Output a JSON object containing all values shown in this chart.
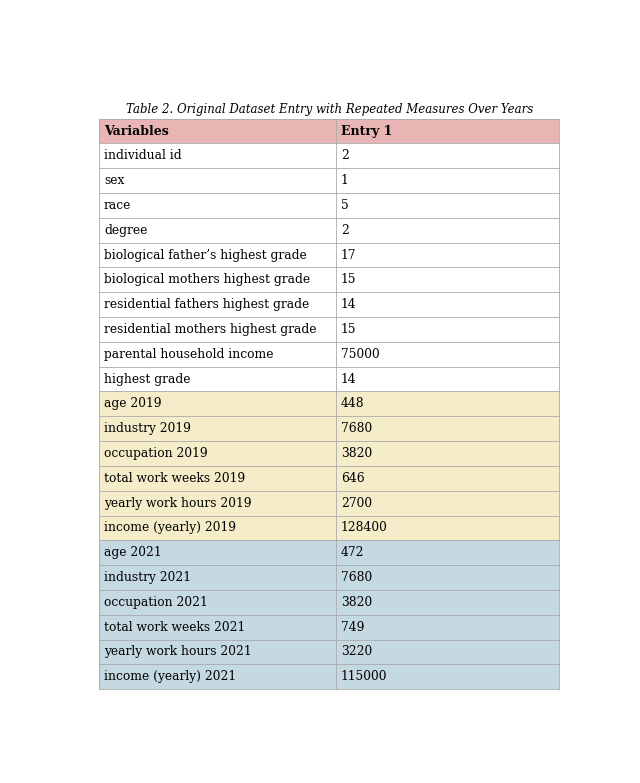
{
  "title": "Table 2. Original Dataset Entry with Repeated Measures Over Years",
  "col_headers": [
    "Variables",
    "Entry 1"
  ],
  "rows": [
    [
      "individual id",
      "2"
    ],
    [
      "sex",
      "1"
    ],
    [
      "race",
      "5"
    ],
    [
      "degree",
      "2"
    ],
    [
      "biological father’s highest grade",
      "17"
    ],
    [
      "biological mothers highest grade",
      "15"
    ],
    [
      "residential fathers highest grade",
      "14"
    ],
    [
      "residential mothers highest grade",
      "15"
    ],
    [
      "parental household income",
      "75000"
    ],
    [
      "highest grade",
      "14"
    ],
    [
      "age 2019",
      "448"
    ],
    [
      "industry 2019",
      "7680"
    ],
    [
      "occupation 2019",
      "3820"
    ],
    [
      "total work weeks 2019",
      "646"
    ],
    [
      "yearly work hours 2019",
      "2700"
    ],
    [
      "income (yearly) 2019",
      "128400"
    ],
    [
      "age 2021",
      "472"
    ],
    [
      "industry 2021",
      "7680"
    ],
    [
      "occupation 2021",
      "3820"
    ],
    [
      "total work weeks 2021",
      "749"
    ],
    [
      "yearly work hours 2021",
      "3220"
    ],
    [
      "income (yearly) 2021",
      "115000"
    ]
  ],
  "header_bg": "#e8b4b4",
  "white_bg": "#ffffff",
  "yellow_bg": "#f5edca",
  "blue_bg": "#c5d9e2",
  "border_color": "#aaaaaa",
  "title_fontsize": 8.5,
  "header_fontsize": 9,
  "cell_fontsize": 8.8,
  "col_split": 0.515,
  "row_groups": {
    "white": [
      0,
      9
    ],
    "yellow": [
      10,
      15
    ],
    "blue": [
      16,
      21
    ]
  }
}
